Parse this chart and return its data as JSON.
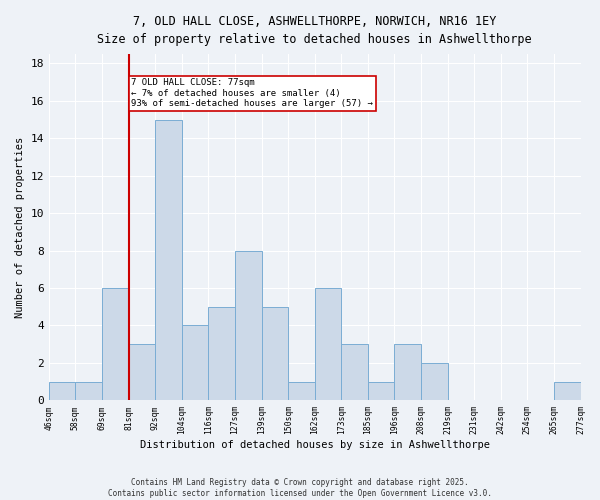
{
  "title_line1": "7, OLD HALL CLOSE, ASHWELLTHORPE, NORWICH, NR16 1EY",
  "title_line2": "Size of property relative to detached houses in Ashwellthorpe",
  "xlabel": "Distribution of detached houses by size in Ashwellthorpe",
  "ylabel": "Number of detached properties",
  "bin_labels": [
    "46sqm",
    "58sqm",
    "69sqm",
    "81sqm",
    "92sqm",
    "104sqm",
    "116sqm",
    "127sqm",
    "139sqm",
    "150sqm",
    "162sqm",
    "173sqm",
    "185sqm",
    "196sqm",
    "208sqm",
    "219sqm",
    "231sqm",
    "242sqm",
    "254sqm",
    "265sqm",
    "277sqm"
  ],
  "bar_heights": [
    1,
    1,
    6,
    3,
    15,
    4,
    5,
    8,
    5,
    1,
    6,
    3,
    1,
    3,
    2,
    0,
    0,
    0,
    0,
    1
  ],
  "bar_color": "#ccd9e8",
  "bar_edge_color": "#7aadd4",
  "vline_bin": 3,
  "vline_color": "#cc0000",
  "annotation_text": "7 OLD HALL CLOSE: 77sqm\n← 7% of detached houses are smaller (4)\n93% of semi-detached houses are larger (57) →",
  "annotation_box_color": "#ffffff",
  "annotation_box_edge": "#cc0000",
  "ylim": [
    0,
    18.5
  ],
  "yticks": [
    0,
    2,
    4,
    6,
    8,
    10,
    12,
    14,
    16,
    18
  ],
  "background_color": "#eef2f7",
  "grid_color": "#ffffff",
  "footer": "Contains HM Land Registry data © Crown copyright and database right 2025.\nContains public sector information licensed under the Open Government Licence v3.0."
}
